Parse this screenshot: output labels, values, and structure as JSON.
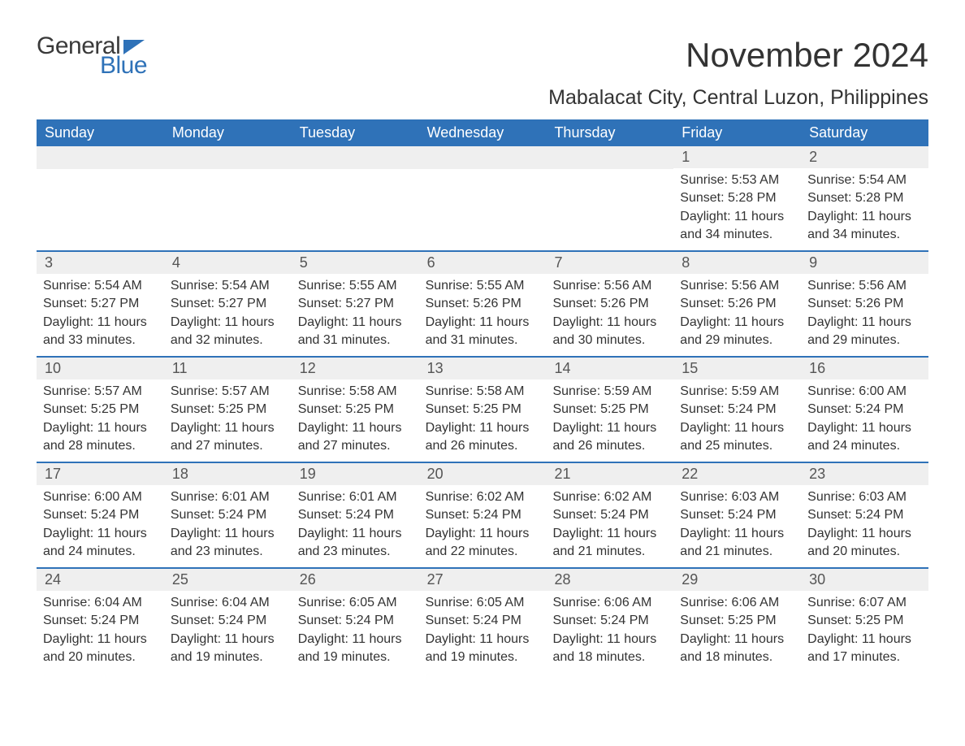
{
  "logo": {
    "line1": "General",
    "line2": "Blue"
  },
  "title": "November 2024",
  "subtitle": "Mabalacat City, Central Luzon, Philippines",
  "colors": {
    "brand_blue": "#2f72b8",
    "header_bg": "#2f72b8",
    "header_text": "#ffffff",
    "daynum_bg": "#efefef",
    "text": "#333333",
    "body_bg": "#ffffff"
  },
  "fonts": {
    "title_size": 42,
    "subtitle_size": 25,
    "weekday_size": 18,
    "daynum_size": 18,
    "content_size": 16
  },
  "weekdays": [
    "Sunday",
    "Monday",
    "Tuesday",
    "Wednesday",
    "Thursday",
    "Friday",
    "Saturday"
  ],
  "weeks": [
    [
      null,
      null,
      null,
      null,
      null,
      {
        "num": "1",
        "sunrise": "Sunrise: 5:53 AM",
        "sunset": "Sunset: 5:28 PM",
        "daylight1": "Daylight: 11 hours",
        "daylight2": "and 34 minutes."
      },
      {
        "num": "2",
        "sunrise": "Sunrise: 5:54 AM",
        "sunset": "Sunset: 5:28 PM",
        "daylight1": "Daylight: 11 hours",
        "daylight2": "and 34 minutes."
      }
    ],
    [
      {
        "num": "3",
        "sunrise": "Sunrise: 5:54 AM",
        "sunset": "Sunset: 5:27 PM",
        "daylight1": "Daylight: 11 hours",
        "daylight2": "and 33 minutes."
      },
      {
        "num": "4",
        "sunrise": "Sunrise: 5:54 AM",
        "sunset": "Sunset: 5:27 PM",
        "daylight1": "Daylight: 11 hours",
        "daylight2": "and 32 minutes."
      },
      {
        "num": "5",
        "sunrise": "Sunrise: 5:55 AM",
        "sunset": "Sunset: 5:27 PM",
        "daylight1": "Daylight: 11 hours",
        "daylight2": "and 31 minutes."
      },
      {
        "num": "6",
        "sunrise": "Sunrise: 5:55 AM",
        "sunset": "Sunset: 5:26 PM",
        "daylight1": "Daylight: 11 hours",
        "daylight2": "and 31 minutes."
      },
      {
        "num": "7",
        "sunrise": "Sunrise: 5:56 AM",
        "sunset": "Sunset: 5:26 PM",
        "daylight1": "Daylight: 11 hours",
        "daylight2": "and 30 minutes."
      },
      {
        "num": "8",
        "sunrise": "Sunrise: 5:56 AM",
        "sunset": "Sunset: 5:26 PM",
        "daylight1": "Daylight: 11 hours",
        "daylight2": "and 29 minutes."
      },
      {
        "num": "9",
        "sunrise": "Sunrise: 5:56 AM",
        "sunset": "Sunset: 5:26 PM",
        "daylight1": "Daylight: 11 hours",
        "daylight2": "and 29 minutes."
      }
    ],
    [
      {
        "num": "10",
        "sunrise": "Sunrise: 5:57 AM",
        "sunset": "Sunset: 5:25 PM",
        "daylight1": "Daylight: 11 hours",
        "daylight2": "and 28 minutes."
      },
      {
        "num": "11",
        "sunrise": "Sunrise: 5:57 AM",
        "sunset": "Sunset: 5:25 PM",
        "daylight1": "Daylight: 11 hours",
        "daylight2": "and 27 minutes."
      },
      {
        "num": "12",
        "sunrise": "Sunrise: 5:58 AM",
        "sunset": "Sunset: 5:25 PM",
        "daylight1": "Daylight: 11 hours",
        "daylight2": "and 27 minutes."
      },
      {
        "num": "13",
        "sunrise": "Sunrise: 5:58 AM",
        "sunset": "Sunset: 5:25 PM",
        "daylight1": "Daylight: 11 hours",
        "daylight2": "and 26 minutes."
      },
      {
        "num": "14",
        "sunrise": "Sunrise: 5:59 AM",
        "sunset": "Sunset: 5:25 PM",
        "daylight1": "Daylight: 11 hours",
        "daylight2": "and 26 minutes."
      },
      {
        "num": "15",
        "sunrise": "Sunrise: 5:59 AM",
        "sunset": "Sunset: 5:24 PM",
        "daylight1": "Daylight: 11 hours",
        "daylight2": "and 25 minutes."
      },
      {
        "num": "16",
        "sunrise": "Sunrise: 6:00 AM",
        "sunset": "Sunset: 5:24 PM",
        "daylight1": "Daylight: 11 hours",
        "daylight2": "and 24 minutes."
      }
    ],
    [
      {
        "num": "17",
        "sunrise": "Sunrise: 6:00 AM",
        "sunset": "Sunset: 5:24 PM",
        "daylight1": "Daylight: 11 hours",
        "daylight2": "and 24 minutes."
      },
      {
        "num": "18",
        "sunrise": "Sunrise: 6:01 AM",
        "sunset": "Sunset: 5:24 PM",
        "daylight1": "Daylight: 11 hours",
        "daylight2": "and 23 minutes."
      },
      {
        "num": "19",
        "sunrise": "Sunrise: 6:01 AM",
        "sunset": "Sunset: 5:24 PM",
        "daylight1": "Daylight: 11 hours",
        "daylight2": "and 23 minutes."
      },
      {
        "num": "20",
        "sunrise": "Sunrise: 6:02 AM",
        "sunset": "Sunset: 5:24 PM",
        "daylight1": "Daylight: 11 hours",
        "daylight2": "and 22 minutes."
      },
      {
        "num": "21",
        "sunrise": "Sunrise: 6:02 AM",
        "sunset": "Sunset: 5:24 PM",
        "daylight1": "Daylight: 11 hours",
        "daylight2": "and 21 minutes."
      },
      {
        "num": "22",
        "sunrise": "Sunrise: 6:03 AM",
        "sunset": "Sunset: 5:24 PM",
        "daylight1": "Daylight: 11 hours",
        "daylight2": "and 21 minutes."
      },
      {
        "num": "23",
        "sunrise": "Sunrise: 6:03 AM",
        "sunset": "Sunset: 5:24 PM",
        "daylight1": "Daylight: 11 hours",
        "daylight2": "and 20 minutes."
      }
    ],
    [
      {
        "num": "24",
        "sunrise": "Sunrise: 6:04 AM",
        "sunset": "Sunset: 5:24 PM",
        "daylight1": "Daylight: 11 hours",
        "daylight2": "and 20 minutes."
      },
      {
        "num": "25",
        "sunrise": "Sunrise: 6:04 AM",
        "sunset": "Sunset: 5:24 PM",
        "daylight1": "Daylight: 11 hours",
        "daylight2": "and 19 minutes."
      },
      {
        "num": "26",
        "sunrise": "Sunrise: 6:05 AM",
        "sunset": "Sunset: 5:24 PM",
        "daylight1": "Daylight: 11 hours",
        "daylight2": "and 19 minutes."
      },
      {
        "num": "27",
        "sunrise": "Sunrise: 6:05 AM",
        "sunset": "Sunset: 5:24 PM",
        "daylight1": "Daylight: 11 hours",
        "daylight2": "and 19 minutes."
      },
      {
        "num": "28",
        "sunrise": "Sunrise: 6:06 AM",
        "sunset": "Sunset: 5:24 PM",
        "daylight1": "Daylight: 11 hours",
        "daylight2": "and 18 minutes."
      },
      {
        "num": "29",
        "sunrise": "Sunrise: 6:06 AM",
        "sunset": "Sunset: 5:25 PM",
        "daylight1": "Daylight: 11 hours",
        "daylight2": "and 18 minutes."
      },
      {
        "num": "30",
        "sunrise": "Sunrise: 6:07 AM",
        "sunset": "Sunset: 5:25 PM",
        "daylight1": "Daylight: 11 hours",
        "daylight2": "and 17 minutes."
      }
    ]
  ]
}
